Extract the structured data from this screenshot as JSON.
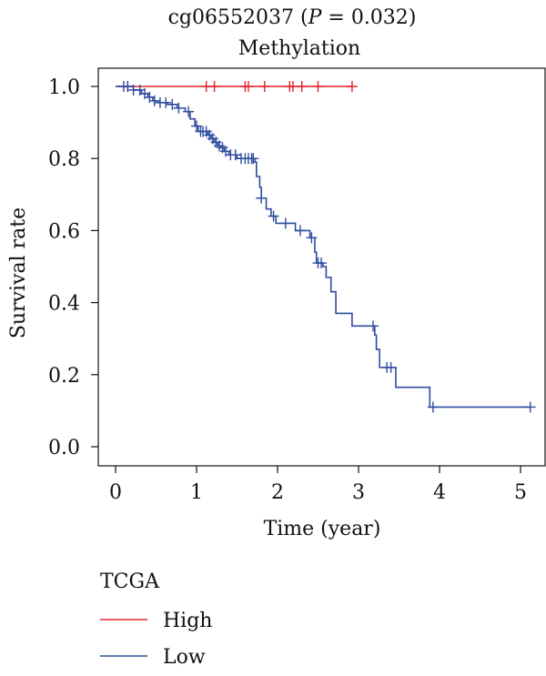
{
  "chart_data": {
    "type": "line",
    "subtype": "kaplan-meier",
    "title_id": "cg06552037",
    "title_p_label": "P",
    "title_p_value": "= 0.032",
    "subtitle": "Methylation",
    "xlabel": "Time (year)",
    "ylabel": "Survival rate",
    "xlim": [
      0,
      5.2
    ],
    "ylim": [
      0,
      1.0
    ],
    "x_ticks": [
      "0",
      "1",
      "2",
      "3",
      "4",
      "5"
    ],
    "y_ticks": [
      "0.0",
      "0.2",
      "0.4",
      "0.6",
      "0.8",
      "1.0"
    ],
    "grid": false,
    "legend": {
      "title": "TCGA",
      "position": "bottom-left",
      "items": [
        {
          "name": "High",
          "color": "#e0262b"
        },
        {
          "name": "Low",
          "color": "#2f4b9f"
        }
      ]
    },
    "series": [
      {
        "name": "High",
        "color": "#e0262b",
        "steps": [
          [
            0,
            1.0
          ],
          [
            2.92,
            1.0
          ]
        ],
        "censor_times": [
          0.15,
          1.12,
          1.22,
          1.6,
          1.64,
          1.84,
          2.15,
          2.19,
          2.3,
          2.5,
          2.92
        ]
      },
      {
        "name": "Low",
        "color": "#2f4b9f",
        "steps": [
          [
            0,
            1.0
          ],
          [
            0.22,
            0.99
          ],
          [
            0.32,
            0.98
          ],
          [
            0.4,
            0.97
          ],
          [
            0.46,
            0.96
          ],
          [
            0.52,
            0.955
          ],
          [
            0.64,
            0.95
          ],
          [
            0.76,
            0.94
          ],
          [
            0.86,
            0.93
          ],
          [
            0.92,
            0.91
          ],
          [
            0.98,
            0.89
          ],
          [
            1.02,
            0.875
          ],
          [
            1.14,
            0.865
          ],
          [
            1.18,
            0.855
          ],
          [
            1.22,
            0.845
          ],
          [
            1.26,
            0.835
          ],
          [
            1.3,
            0.83
          ],
          [
            1.34,
            0.82
          ],
          [
            1.4,
            0.81
          ],
          [
            1.5,
            0.8
          ],
          [
            1.72,
            0.79
          ],
          [
            1.74,
            0.75
          ],
          [
            1.78,
            0.72
          ],
          [
            1.8,
            0.69
          ],
          [
            1.86,
            0.66
          ],
          [
            1.92,
            0.64
          ],
          [
            1.98,
            0.62
          ],
          [
            2.22,
            0.6
          ],
          [
            2.4,
            0.58
          ],
          [
            2.46,
            0.54
          ],
          [
            2.48,
            0.51
          ],
          [
            2.56,
            0.5
          ],
          [
            2.6,
            0.47
          ],
          [
            2.66,
            0.43
          ],
          [
            2.72,
            0.37
          ],
          [
            2.92,
            0.335
          ],
          [
            3.2,
            0.31
          ],
          [
            3.22,
            0.27
          ],
          [
            3.26,
            0.22
          ],
          [
            3.46,
            0.165
          ],
          [
            3.88,
            0.11
          ],
          [
            5.12,
            0.11
          ]
        ],
        "censor_times": [
          0.1,
          0.15,
          0.22,
          0.3,
          0.36,
          0.42,
          0.48,
          0.55,
          0.62,
          0.7,
          0.78,
          0.9,
          1.0,
          1.05,
          1.08,
          1.12,
          1.16,
          1.2,
          1.24,
          1.28,
          1.32,
          1.36,
          1.42,
          1.48,
          1.55,
          1.6,
          1.64,
          1.68,
          1.7,
          1.8,
          1.95,
          2.1,
          2.28,
          2.42,
          2.5,
          2.54,
          3.18,
          3.35,
          3.4,
          3.92,
          5.12
        ]
      }
    ]
  }
}
